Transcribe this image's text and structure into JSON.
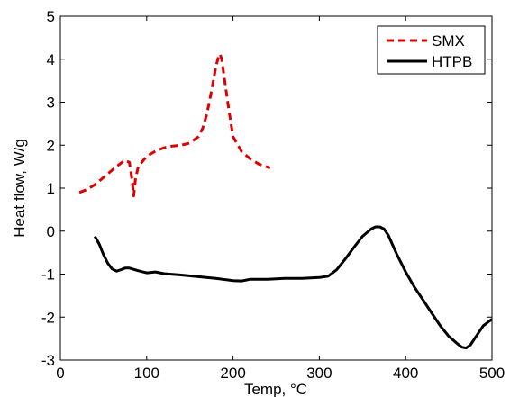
{
  "chart_data": {
    "type": "line",
    "title": "",
    "xlabel": "Temp, °C",
    "ylabel": "Heat flow, W/g",
    "xlim": [
      0,
      500
    ],
    "ylim": [
      -3,
      5
    ],
    "xticks": [
      "0",
      "100",
      "200",
      "300",
      "400",
      "500"
    ],
    "yticks": [
      "-3",
      "-2",
      "-1",
      "0",
      "1",
      "2",
      "3",
      "4",
      "5"
    ],
    "grid": false,
    "legend_position": "top-right",
    "series": [
      {
        "name": "SMX",
        "color": "#dd0000",
        "style": "dashed",
        "x": [
          22,
          30,
          40,
          50,
          60,
          70,
          75,
          80,
          83,
          85,
          87,
          90,
          95,
          100,
          110,
          120,
          130,
          140,
          150,
          160,
          165,
          170,
          175,
          180,
          183,
          185,
          187,
          190,
          195,
          200,
          210,
          220,
          230,
          243
        ],
        "y": [
          0.9,
          0.96,
          1.08,
          1.25,
          1.42,
          1.58,
          1.65,
          1.6,
          1.2,
          0.82,
          1.2,
          1.48,
          1.62,
          1.74,
          1.86,
          1.94,
          1.98,
          2.0,
          2.05,
          2.2,
          2.4,
          2.75,
          3.25,
          3.8,
          4.05,
          4.12,
          4.0,
          3.55,
          2.85,
          2.2,
          1.85,
          1.68,
          1.56,
          1.47
        ]
      },
      {
        "name": "HTPB",
        "color": "#000000",
        "style": "solid",
        "x": [
          40,
          45,
          50,
          55,
          60,
          65,
          70,
          75,
          80,
          90,
          100,
          110,
          120,
          140,
          160,
          180,
          200,
          210,
          220,
          240,
          260,
          280,
          300,
          310,
          320,
          330,
          340,
          350,
          360,
          365,
          370,
          375,
          380,
          390,
          400,
          410,
          420,
          430,
          440,
          450,
          460,
          465,
          470,
          475,
          480,
          490,
          500
        ],
        "y": [
          -0.12,
          -0.3,
          -0.55,
          -0.75,
          -0.88,
          -0.93,
          -0.9,
          -0.86,
          -0.86,
          -0.92,
          -0.97,
          -0.95,
          -0.99,
          -1.02,
          -1.06,
          -1.1,
          -1.15,
          -1.16,
          -1.12,
          -1.12,
          -1.1,
          -1.1,
          -1.08,
          -1.05,
          -0.9,
          -0.65,
          -0.38,
          -0.12,
          0.05,
          0.1,
          0.1,
          0.05,
          -0.1,
          -0.55,
          -0.95,
          -1.3,
          -1.6,
          -1.9,
          -2.2,
          -2.45,
          -2.62,
          -2.7,
          -2.72,
          -2.65,
          -2.5,
          -2.2,
          -2.05
        ]
      }
    ]
  }
}
